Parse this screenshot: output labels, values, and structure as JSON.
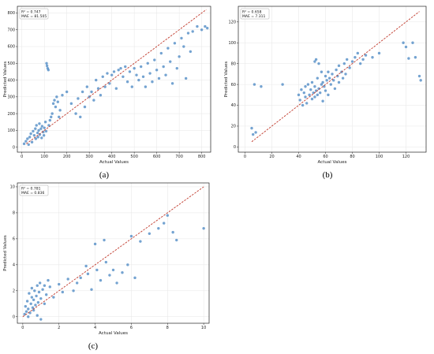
{
  "colors": {
    "point": "#3f7fbf",
    "identity_line": "#c0392b",
    "frame": "#222222"
  },
  "chart_data": [
    {
      "type": "scatter",
      "caption": "(a)",
      "xlabel": "Actual Values",
      "ylabel": "Predicted Values",
      "xlim": [
        -20,
        840
      ],
      "ylim": [
        -30,
        840
      ],
      "xticks": [
        0,
        100,
        200,
        300,
        400,
        500,
        600,
        700,
        800
      ],
      "yticks": [
        0,
        100,
        200,
        300,
        400,
        500,
        600,
        700,
        800
      ],
      "stats": [
        "R² = 0.747",
        "MAE = 81.505"
      ],
      "grid": true,
      "identity_line": [
        [
          20,
          20
        ],
        [
          820,
          820
        ]
      ],
      "points": [
        [
          10,
          20
        ],
        [
          18,
          35
        ],
        [
          25,
          50
        ],
        [
          30,
          15
        ],
        [
          35,
          60
        ],
        [
          40,
          80
        ],
        [
          45,
          30
        ],
        [
          50,
          95
        ],
        [
          55,
          70
        ],
        [
          60,
          110
        ],
        [
          62,
          50
        ],
        [
          65,
          130
        ],
        [
          70,
          85
        ],
        [
          72,
          60
        ],
        [
          75,
          100
        ],
        [
          78,
          140
        ],
        [
          80,
          75
        ],
        [
          85,
          110
        ],
        [
          88,
          55
        ],
        [
          90,
          125
        ],
        [
          95,
          90
        ],
        [
          98,
          70
        ],
        [
          100,
          115
        ],
        [
          105,
          150
        ],
        [
          108,
          95
        ],
        [
          110,
          500
        ],
        [
          112,
          485
        ],
        [
          115,
          470
        ],
        [
          118,
          460
        ],
        [
          120,
          130
        ],
        [
          125,
          160
        ],
        [
          130,
          180
        ],
        [
          135,
          200
        ],
        [
          140,
          260
        ],
        [
          145,
          280
        ],
        [
          150,
          240
        ],
        [
          155,
          300
        ],
        [
          160,
          270
        ],
        [
          165,
          180
        ],
        [
          170,
          220
        ],
        [
          180,
          310
        ],
        [
          200,
          330
        ],
        [
          220,
          260
        ],
        [
          240,
          200
        ],
        [
          250,
          290
        ],
        [
          260,
          180
        ],
        [
          270,
          330
        ],
        [
          280,
          240
        ],
        [
          290,
          360
        ],
        [
          300,
          300
        ],
        [
          310,
          330
        ],
        [
          320,
          280
        ],
        [
          330,
          400
        ],
        [
          340,
          350
        ],
        [
          350,
          310
        ],
        [
          360,
          420
        ],
        [
          370,
          360
        ],
        [
          380,
          440
        ],
        [
          390,
          380
        ],
        [
          400,
          430
        ],
        [
          410,
          450
        ],
        [
          420,
          350
        ],
        [
          430,
          460
        ],
        [
          440,
          470
        ],
        [
          450,
          420
        ],
        [
          460,
          480
        ],
        [
          470,
          390
        ],
        [
          480,
          450
        ],
        [
          490,
          360
        ],
        [
          500,
          470
        ],
        [
          510,
          430
        ],
        [
          520,
          400
        ],
        [
          530,
          480
        ],
        [
          540,
          420
        ],
        [
          550,
          360
        ],
        [
          560,
          500
        ],
        [
          570,
          440
        ],
        [
          580,
          390
        ],
        [
          590,
          520
        ],
        [
          600,
          460
        ],
        [
          610,
          410
        ],
        [
          620,
          560
        ],
        [
          630,
          480
        ],
        [
          640,
          430
        ],
        [
          650,
          590
        ],
        [
          660,
          510
        ],
        [
          670,
          380
        ],
        [
          680,
          620
        ],
        [
          690,
          470
        ],
        [
          700,
          540
        ],
        [
          710,
          650
        ],
        [
          720,
          600
        ],
        [
          730,
          410
        ],
        [
          740,
          680
        ],
        [
          750,
          570
        ],
        [
          760,
          690
        ],
        [
          780,
          720
        ],
        [
          800,
          700
        ],
        [
          815,
          720
        ],
        [
          825,
          710
        ]
      ]
    },
    {
      "type": "scatter",
      "caption": "(b)",
      "xlabel": "Actual Values",
      "ylabel": "Predicted Values",
      "xlim": [
        -5,
        135
      ],
      "ylim": [
        -5,
        135
      ],
      "xticks": [
        0,
        20,
        40,
        60,
        80,
        100,
        120
      ],
      "yticks": [
        0,
        20,
        40,
        60,
        80,
        100,
        120
      ],
      "stats": [
        "R² = 0.658",
        "MAE = 7.311"
      ],
      "grid": true,
      "identity_line": [
        [
          5,
          5
        ],
        [
          130,
          130
        ]
      ],
      "points": [
        [
          5,
          18
        ],
        [
          6,
          12
        ],
        [
          7,
          60
        ],
        [
          8,
          14
        ],
        [
          12,
          58
        ],
        [
          28,
          60
        ],
        [
          40,
          50
        ],
        [
          41,
          45
        ],
        [
          42,
          55
        ],
        [
          43,
          40
        ],
        [
          44,
          52
        ],
        [
          45,
          48
        ],
        [
          45,
          58
        ],
        [
          46,
          42
        ],
        [
          47,
          60
        ],
        [
          48,
          50
        ],
        [
          49,
          55
        ],
        [
          50,
          46
        ],
        [
          50,
          62
        ],
        [
          51,
          52
        ],
        [
          52,
          48
        ],
        [
          52,
          58
        ],
        [
          53,
          54
        ],
        [
          54,
          50
        ],
        [
          54,
          66
        ],
        [
          55,
          56
        ],
        [
          56,
          52
        ],
        [
          57,
          60
        ],
        [
          58,
          44
        ],
        [
          58,
          62
        ],
        [
          59,
          58
        ],
        [
          60,
          54
        ],
        [
          60,
          68
        ],
        [
          61,
          64
        ],
        [
          62,
          50
        ],
        [
          62,
          72
        ],
        [
          63,
          66
        ],
        [
          64,
          60
        ],
        [
          65,
          70
        ],
        [
          66,
          64
        ],
        [
          67,
          56
        ],
        [
          68,
          74
        ],
        [
          69,
          68
        ],
        [
          70,
          62
        ],
        [
          70,
          78
        ],
        [
          72,
          72
        ],
        [
          73,
          66
        ],
        [
          74,
          80
        ],
        [
          75,
          70
        ],
        [
          76,
          84
        ],
        [
          78,
          76
        ],
        [
          80,
          82
        ],
        [
          82,
          86
        ],
        [
          84,
          90
        ],
        [
          86,
          80
        ],
        [
          88,
          84
        ],
        [
          90,
          88
        ],
        [
          52,
          82
        ],
        [
          53,
          84
        ],
        [
          55,
          80
        ],
        [
          95,
          86
        ],
        [
          100,
          90
        ],
        [
          118,
          100
        ],
        [
          120,
          96
        ],
        [
          122,
          85
        ],
        [
          125,
          100
        ],
        [
          127,
          86
        ],
        [
          130,
          68
        ],
        [
          131,
          64
        ],
        [
          57,
          72
        ]
      ]
    },
    {
      "type": "scatter",
      "caption": "(c)",
      "xlabel": "Actual Values",
      "ylabel": "Predicted Values",
      "xlim": [
        -0.3,
        10.3
      ],
      "ylim": [
        -0.5,
        10.3
      ],
      "xticks": [
        0,
        2,
        4,
        6,
        8,
        10
      ],
      "yticks": [
        0,
        2,
        4,
        6,
        8,
        10
      ],
      "stats": [
        "R² = 0.781",
        "MAE = 0.836"
      ],
      "grid": true,
      "identity_line": [
        [
          0,
          0
        ],
        [
          10,
          10
        ]
      ],
      "points": [
        [
          0.1,
          0.2
        ],
        [
          0.15,
          0.8
        ],
        [
          0.2,
          0.4
        ],
        [
          0.25,
          1.2
        ],
        [
          0.3,
          0.6
        ],
        [
          0.35,
          1.8
        ],
        [
          0.4,
          0.3
        ],
        [
          0.45,
          1.0
        ],
        [
          0.5,
          1.5
        ],
        [
          0.5,
          2.2
        ],
        [
          0.55,
          0.7
        ],
        [
          0.6,
          1.3
        ],
        [
          0.65,
          2.0
        ],
        [
          0.7,
          0.9
        ],
        [
          0.75,
          1.6
        ],
        [
          0.8,
          2.4
        ],
        [
          0.85,
          1.1
        ],
        [
          0.9,
          1.9
        ],
        [
          0.95,
          2.6
        ],
        [
          1.0,
          1.4
        ],
        [
          1.0,
          -0.2
        ],
        [
          1.1,
          2.1
        ],
        [
          1.2,
          1.0
        ],
        [
          1.3,
          1.7
        ],
        [
          1.4,
          2.8
        ],
        [
          1.5,
          2.3
        ],
        [
          1.7,
          1.5
        ],
        [
          2.0,
          2.5
        ],
        [
          2.2,
          1.9
        ],
        [
          2.5,
          2.9
        ],
        [
          3.0,
          2.6
        ],
        [
          3.5,
          3.9
        ],
        [
          3.6,
          3.3
        ],
        [
          3.8,
          2.1
        ],
        [
          4.0,
          5.6
        ],
        [
          4.1,
          3.6
        ],
        [
          4.3,
          2.8
        ],
        [
          4.5,
          5.9
        ],
        [
          4.8,
          3.2
        ],
        [
          5.0,
          3.6
        ],
        [
          5.2,
          2.6
        ],
        [
          5.5,
          3.4
        ],
        [
          5.8,
          4.0
        ],
        [
          6.0,
          6.2
        ],
        [
          6.2,
          3.0
        ],
        [
          6.5,
          5.8
        ],
        [
          7.0,
          6.4
        ],
        [
          7.5,
          6.8
        ],
        [
          7.8,
          7.2
        ],
        [
          8.0,
          7.8
        ],
        [
          8.3,
          6.5
        ],
        [
          8.5,
          5.9
        ],
        [
          10.0,
          6.8
        ],
        [
          0.3,
          0.0
        ],
        [
          0.6,
          0.5
        ],
        [
          0.8,
          0.1
        ],
        [
          1.2,
          2.4
        ],
        [
          2.8,
          2.0
        ],
        [
          3.2,
          3.0
        ],
        [
          4.6,
          4.2
        ]
      ]
    }
  ]
}
